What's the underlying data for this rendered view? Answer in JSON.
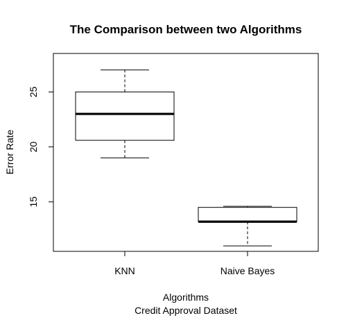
{
  "chart_data": {
    "type": "boxplot",
    "title": "The Comparison between two Algorithms",
    "xlabel": "Algorithms",
    "xlabel_sub": "Credit Approval Dataset",
    "ylabel": "Error Rate",
    "ylim": [
      10.5,
      28.5
    ],
    "yticks": [
      15,
      20,
      25
    ],
    "ytick_labels": [
      "15",
      "20",
      "25"
    ],
    "categories": [
      "KNN",
      "Naive Bayes"
    ],
    "boxes": [
      {
        "category": "KNN",
        "whisker_low": 19,
        "q1": 20.6,
        "median": 23,
        "q3": 25,
        "whisker_high": 27
      },
      {
        "category": "Naive Bayes",
        "whisker_low": 11,
        "q1": 13.2,
        "median": 13.2,
        "q3": 14.5,
        "whisker_high": 14.6
      }
    ],
    "box_fill": "#ffffff",
    "line_color": "#000000",
    "grid": false,
    "legend": "none"
  }
}
